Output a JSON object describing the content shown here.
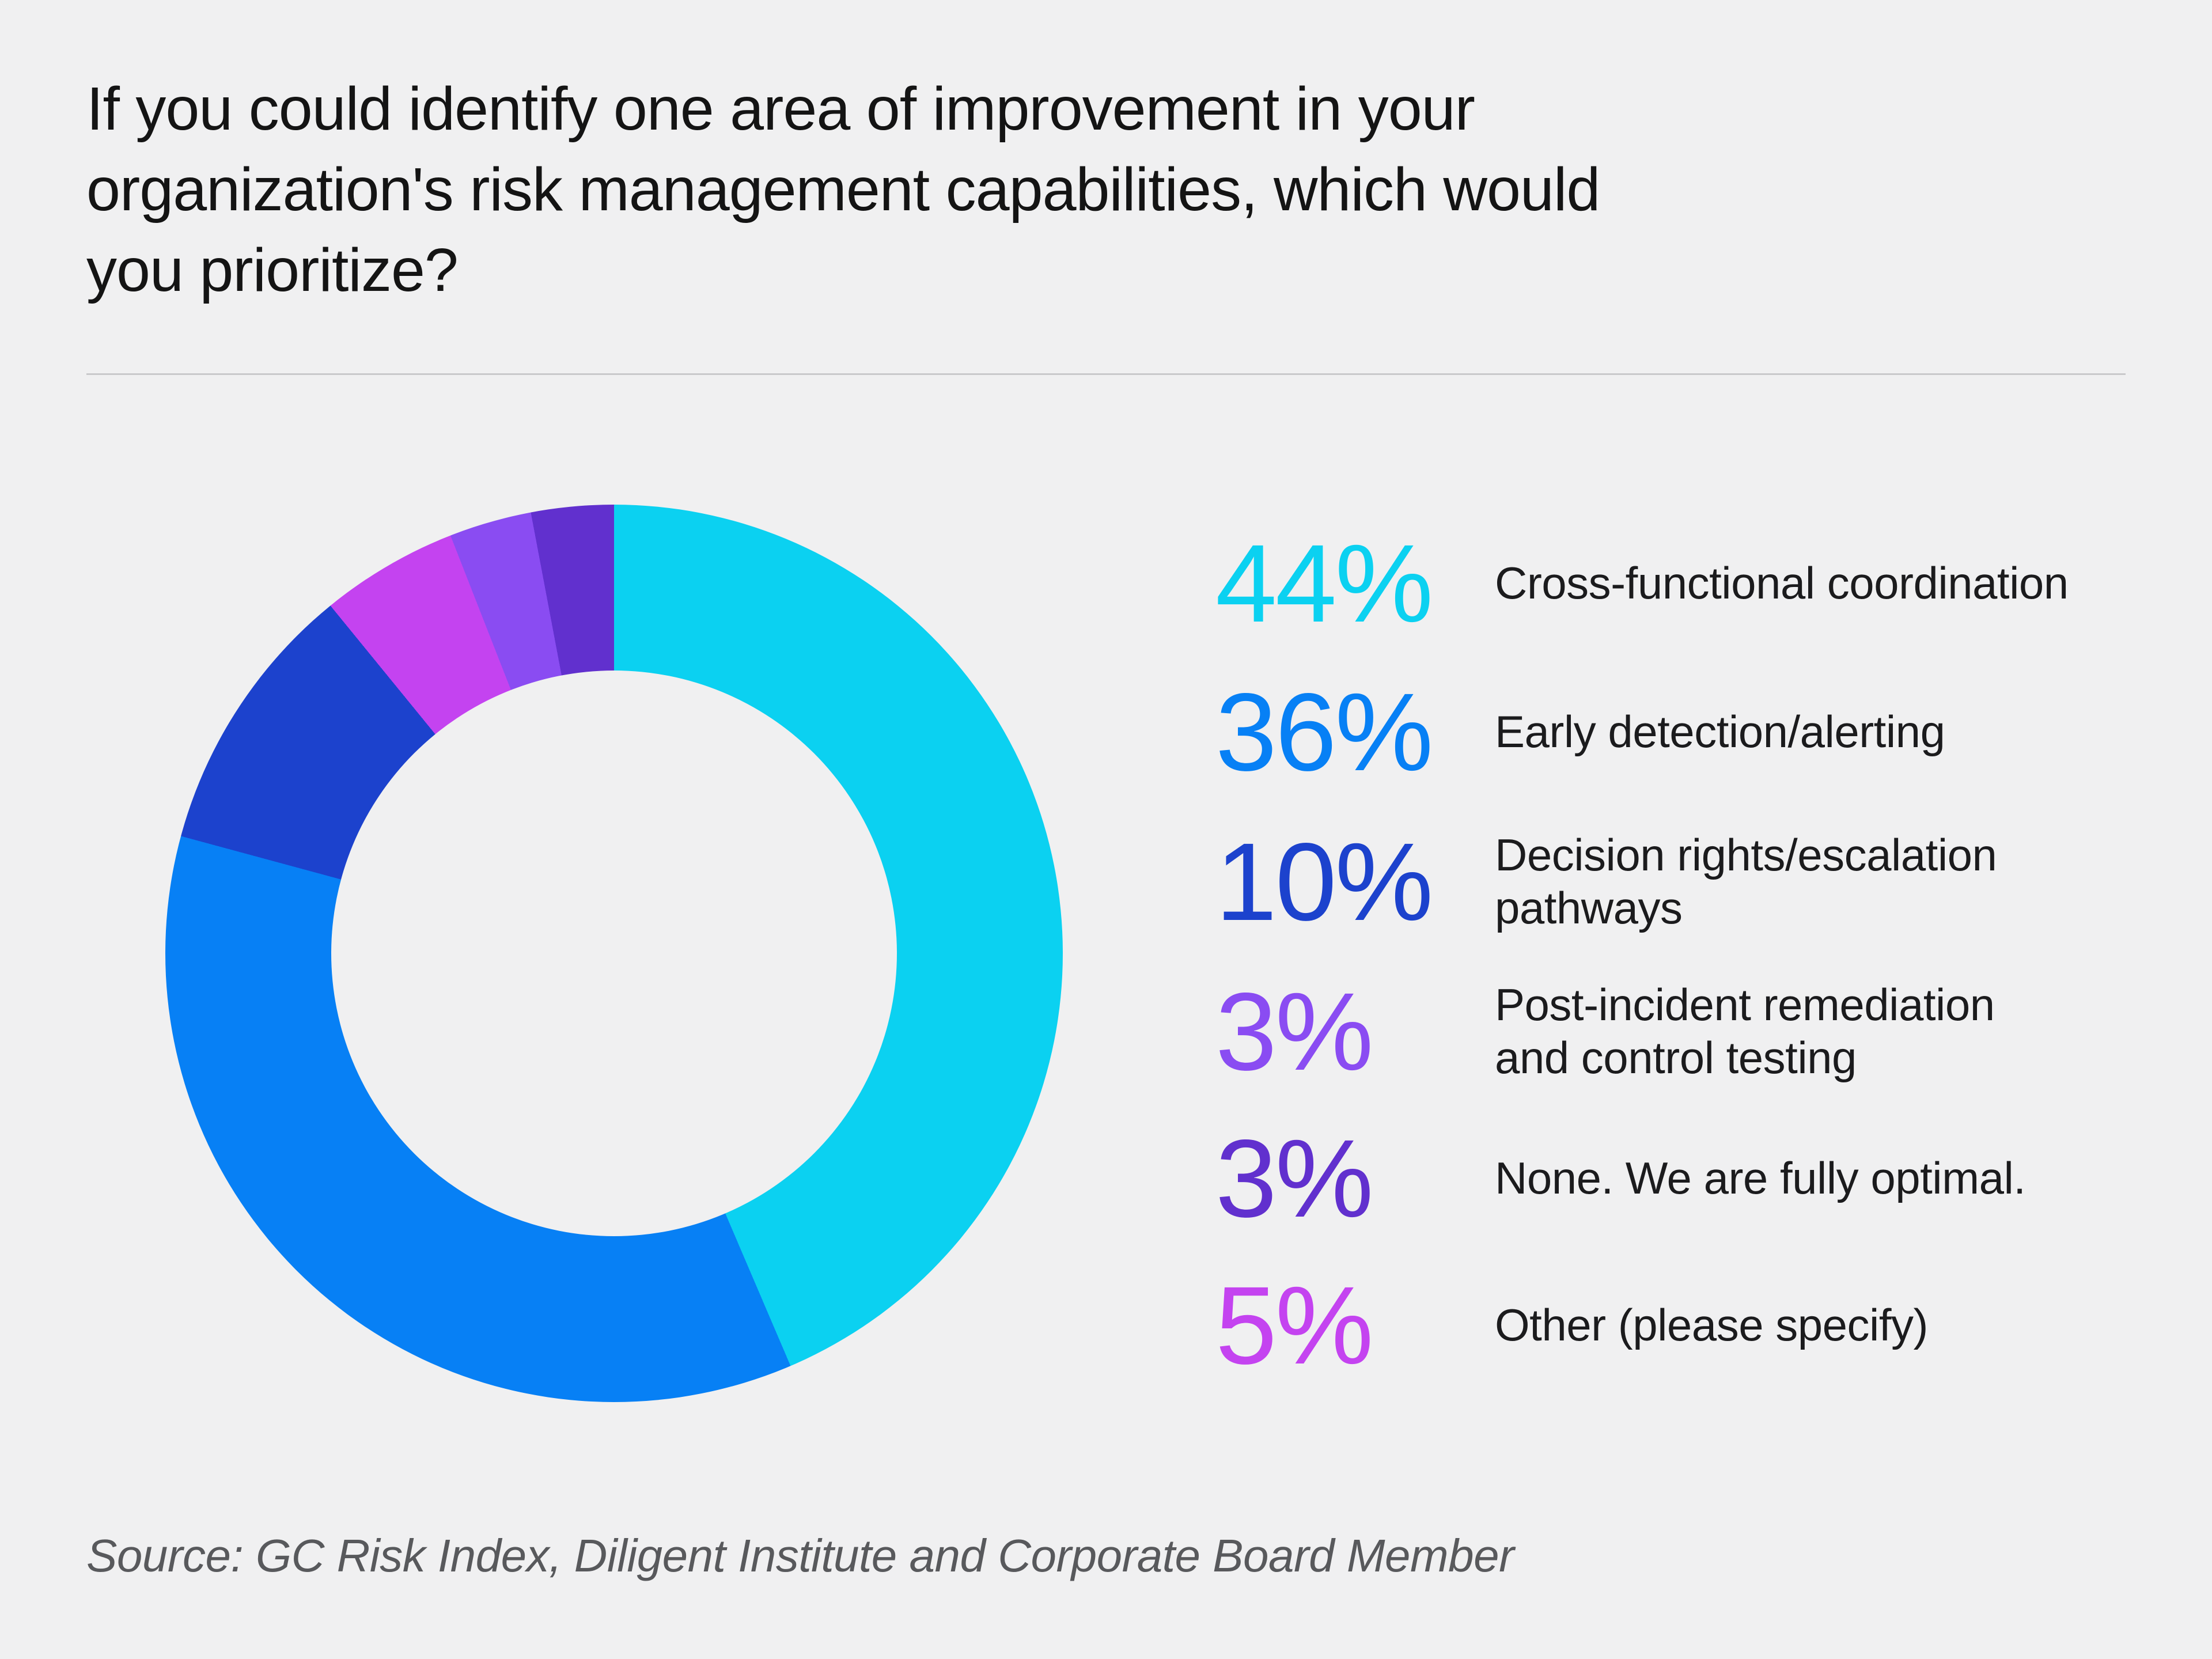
{
  "page": {
    "background": "#F0F0F1",
    "title": "If you could identify one area of improvement in your\norganization's risk management capabilities, which would\nyou prioritize?",
    "source": "Source: GC Risk Index, Diligent Institute and Corporate Board Member"
  },
  "legend": {
    "items": [
      {
        "pct": "44%",
        "label": "Cross-functional coordination",
        "color": "#0BD1F1"
      },
      {
        "pct": "36%",
        "label": "Early detection/alerting",
        "color": "#0780F5"
      },
      {
        "pct": "10%",
        "label": "Decision rights/escalation\npathways",
        "color": "#1C42CD"
      },
      {
        "pct": "3%",
        "label": "Post-incident remediation\nand control testing",
        "color": "#8A4CF2"
      },
      {
        "pct": "3%",
        "label": "None. We are fully optimal.",
        "color": "#6130CE"
      },
      {
        "pct": "5%",
        "label": "Other (please specify)",
        "color": "#C443F0"
      }
    ]
  },
  "chart_data": {
    "type": "pie",
    "subtype": "donut",
    "title": "If you could identify one area of improvement in your organization's risk management capabilities, which would you prioritize?",
    "unit": "%",
    "categories": [
      "Cross-functional coordination",
      "Early detection/alerting",
      "Decision rights/escalation pathways",
      "Post-incident remediation and control testing",
      "None. We are fully optimal.",
      "Other (please specify)"
    ],
    "values": [
      44,
      36,
      10,
      3,
      3,
      5
    ],
    "colors": [
      "#0BD1F1",
      "#0780F5",
      "#1C42CD",
      "#8A4CF2",
      "#6130CE",
      "#C443F0"
    ],
    "slices_in_draw_order": [
      {
        "label": "Cross-functional coordination",
        "value": 44,
        "color": "#0BD1F1"
      },
      {
        "label": "Early detection/alerting",
        "value": 36,
        "color": "#0780F5"
      },
      {
        "label": "Decision rights/escalation pathways",
        "value": 10,
        "color": "#1C42CD"
      },
      {
        "label": "Other (please specify)",
        "value": 5,
        "color": "#C443F0"
      },
      {
        "label": "Post-incident remediation and control testing",
        "value": 3,
        "color": "#8A4CF2"
      },
      {
        "label": "None. We are fully optimal.",
        "value": 3,
        "color": "#6130CE"
      }
    ],
    "start_angle_deg": 0,
    "direction": "clockwise",
    "donut_hole_ratio": 0.63,
    "legend_position": "right",
    "grid": false,
    "source": "Source: GC Risk Index, Diligent Institute and Corporate Board Member"
  }
}
